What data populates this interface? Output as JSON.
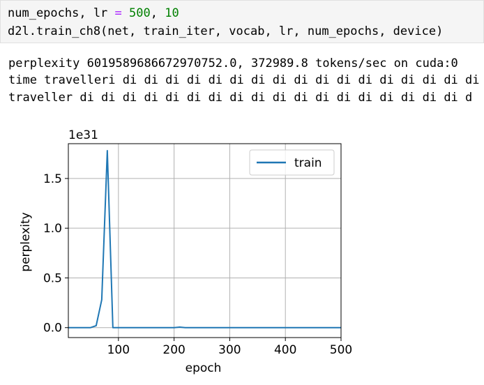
{
  "code_cell": {
    "line1": {
      "a": "num_epochs, lr ",
      "op": "=",
      "b": " ",
      "n1": "500",
      "c": ", ",
      "n2": "10"
    },
    "line2": "d2l.train_ch8(net, train_iter, vocab, lr, num_epochs, device)"
  },
  "output": {
    "line1": "perplexity 6019589686672970752.0, 372989.8 tokens/sec on cuda:0",
    "line2": "time travelleri di di di di di di di di di di di di di di di di di",
    "line3": "traveller di di di di di di di di di di di di di di di di di di d"
  },
  "chart_data": {
    "type": "line",
    "xlabel": "epoch",
    "ylabel": "perplexity",
    "offset_label": "1e31",
    "xlim": [
      10,
      500
    ],
    "ylim": [
      -0.1,
      1.85
    ],
    "xticks": [
      "100",
      "200",
      "300",
      "400",
      "500"
    ],
    "yticks": [
      "0.0",
      "0.5",
      "1.0",
      "1.5"
    ],
    "grid": true,
    "legend_position": "upper right",
    "series": [
      {
        "name": "train",
        "color": "#1f77b4",
        "x": [
          10,
          20,
          30,
          40,
          50,
          60,
          70,
          80,
          90,
          100,
          110,
          120,
          130,
          140,
          150,
          160,
          170,
          180,
          190,
          200,
          210,
          220,
          230,
          240,
          250,
          260,
          270,
          280,
          290,
          300,
          310,
          320,
          330,
          340,
          350,
          360,
          370,
          380,
          390,
          400,
          410,
          420,
          430,
          440,
          450,
          460,
          470,
          480,
          490,
          500
        ],
        "y": [
          0,
          0,
          0,
          0,
          0,
          0.02,
          0.28,
          1.78,
          0,
          0,
          0,
          0,
          0,
          0,
          0,
          0,
          0,
          0,
          0,
          0,
          0.005,
          0,
          0,
          0,
          0,
          0,
          0,
          0,
          0,
          0,
          0,
          0,
          0,
          0,
          0,
          0,
          0,
          0,
          0,
          0,
          0,
          0,
          0,
          0,
          0,
          0,
          0,
          0,
          0,
          0
        ]
      }
    ]
  }
}
